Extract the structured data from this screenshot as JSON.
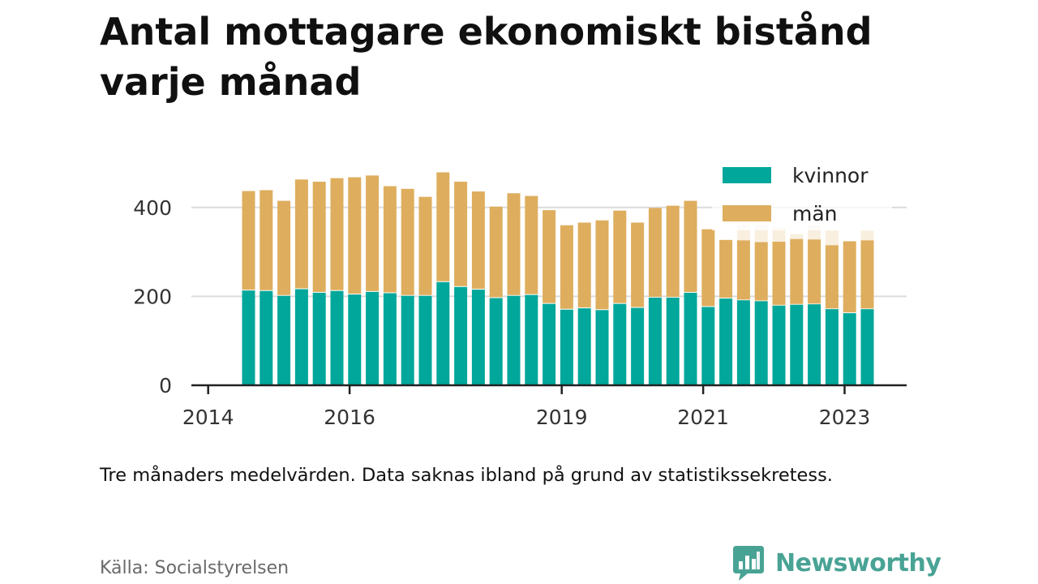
{
  "title": "Antal mottagare ekonomiskt bistånd varje månad",
  "note": "Tre månaders medelvärden. Data saknas ibland på grund av statistikssekretess.",
  "source": "Källa: Socialstyrelsen",
  "brand": {
    "name": "Newsworthy",
    "icon": "bar-chart-speech-bubble-icon",
    "color": "#49a395"
  },
  "colors": {
    "kvinnor": "#00a79a",
    "man": "#deae5e",
    "grid": "#dcdcdc",
    "axis": "#222222"
  },
  "chart_data": {
    "type": "bar",
    "stacked": true,
    "ylim": [
      0,
      480
    ],
    "yticks": [
      "0",
      "200",
      "400"
    ],
    "ytick_values": [
      0,
      200,
      400
    ],
    "xticks": [
      {
        "label": "2014",
        "date": "2014-01"
      },
      {
        "label": "2016",
        "date": "2016-01"
      },
      {
        "label": "2019",
        "date": "2019-01"
      },
      {
        "label": "2021",
        "date": "2021-01"
      },
      {
        "label": "2023",
        "date": "2023-01"
      }
    ],
    "grid": true,
    "legend_position": "top-right",
    "categories": [
      "2014-04",
      "2014-07",
      "2014-10",
      "2015-01",
      "2015-04",
      "2015-07",
      "2015-10",
      "2016-01",
      "2016-04",
      "2016-07",
      "2016-10",
      "2017-01",
      "2017-04",
      "2017-07",
      "2017-10",
      "2018-01",
      "2018-04",
      "2018-07",
      "2018-10",
      "2019-01",
      "2019-04",
      "2019-07",
      "2019-10",
      "2020-01",
      "2020-04",
      "2020-07",
      "2020-10",
      "2021-01",
      "2021-04",
      "2021-07",
      "2021-10",
      "2022-01",
      "2022-04",
      "2022-07",
      "2022-10",
      "2023-01"
    ],
    "series": [
      {
        "name": "kvinnor",
        "values": [
          215,
          214,
          203,
          218,
          210,
          214,
          206,
          212,
          209,
          203,
          203,
          234,
          223,
          217,
          198,
          203,
          205,
          185,
          172,
          175,
          171,
          185,
          176,
          199,
          199,
          210,
          178,
          197,
          193,
          191,
          181,
          183,
          184,
          173,
          164,
          173
        ]
      },
      {
        "name": "män",
        "values": [
          222,
          225,
          212,
          245,
          248,
          252,
          262,
          260,
          239,
          239,
          221,
          245,
          235,
          219,
          204,
          229,
          221,
          209,
          188,
          191,
          200,
          208,
          190,
          200,
          205,
          205,
          173,
          130,
          133,
          131,
          142,
          146,
          144,
          142,
          160,
          153
        ]
      }
    ],
    "faded_totals": [
      null,
      null,
      null,
      null,
      null,
      null,
      null,
      null,
      null,
      null,
      null,
      null,
      null,
      null,
      null,
      null,
      null,
      null,
      null,
      null,
      null,
      null,
      null,
      null,
      null,
      null,
      null,
      null,
      362,
      362,
      355,
      340,
      360,
      348,
      null,
      348
    ]
  }
}
